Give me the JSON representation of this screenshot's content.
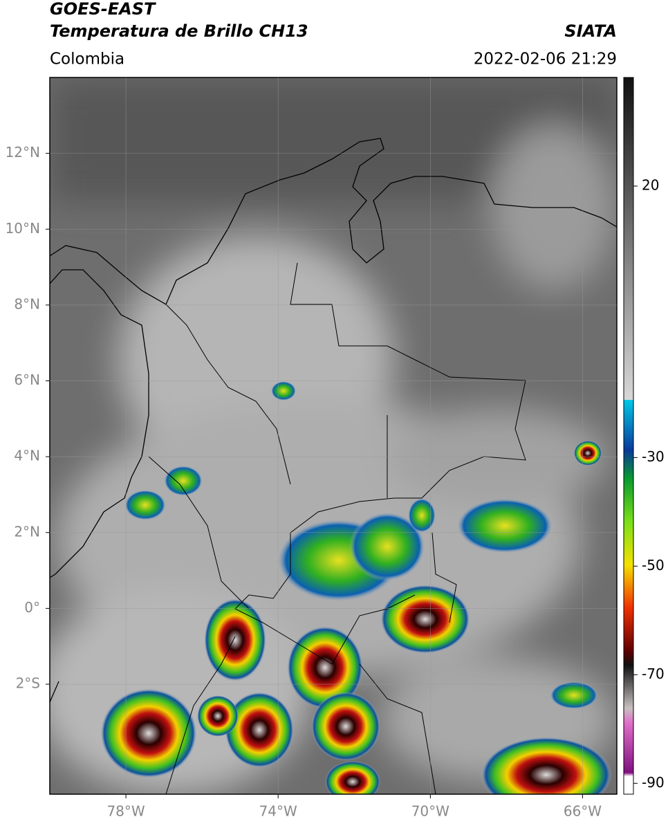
{
  "header": {
    "title": "GOES-EAST",
    "subtitle": "Temperatura de Brillo CH13",
    "region": "Colombia",
    "source": "SIATA",
    "datetime": "2022-02-06 21:29"
  },
  "map": {
    "xlim": [
      -80,
      -65.1
    ],
    "ylim": [
      -4.9,
      14
    ],
    "xticks": [
      {
        "value": -78,
        "label": "78°W"
      },
      {
        "value": -74,
        "label": "74°W"
      },
      {
        "value": -70,
        "label": "70°W"
      },
      {
        "value": -66,
        "label": "66°W"
      }
    ],
    "yticks": [
      {
        "value": 12,
        "label": "12°N"
      },
      {
        "value": 10,
        "label": "10°N"
      },
      {
        "value": 8,
        "label": "8°N"
      },
      {
        "value": 6,
        "label": "6°N"
      },
      {
        "value": 4,
        "label": "4°N"
      },
      {
        "value": 2,
        "label": "2°N"
      },
      {
        "value": 0,
        "label": "0°"
      },
      {
        "value": -2,
        "label": "2°S"
      }
    ]
  },
  "colorbar": {
    "lim": [
      -92,
      40
    ],
    "ticks": [
      20,
      -30,
      -50,
      -70,
      -90
    ]
  }
}
